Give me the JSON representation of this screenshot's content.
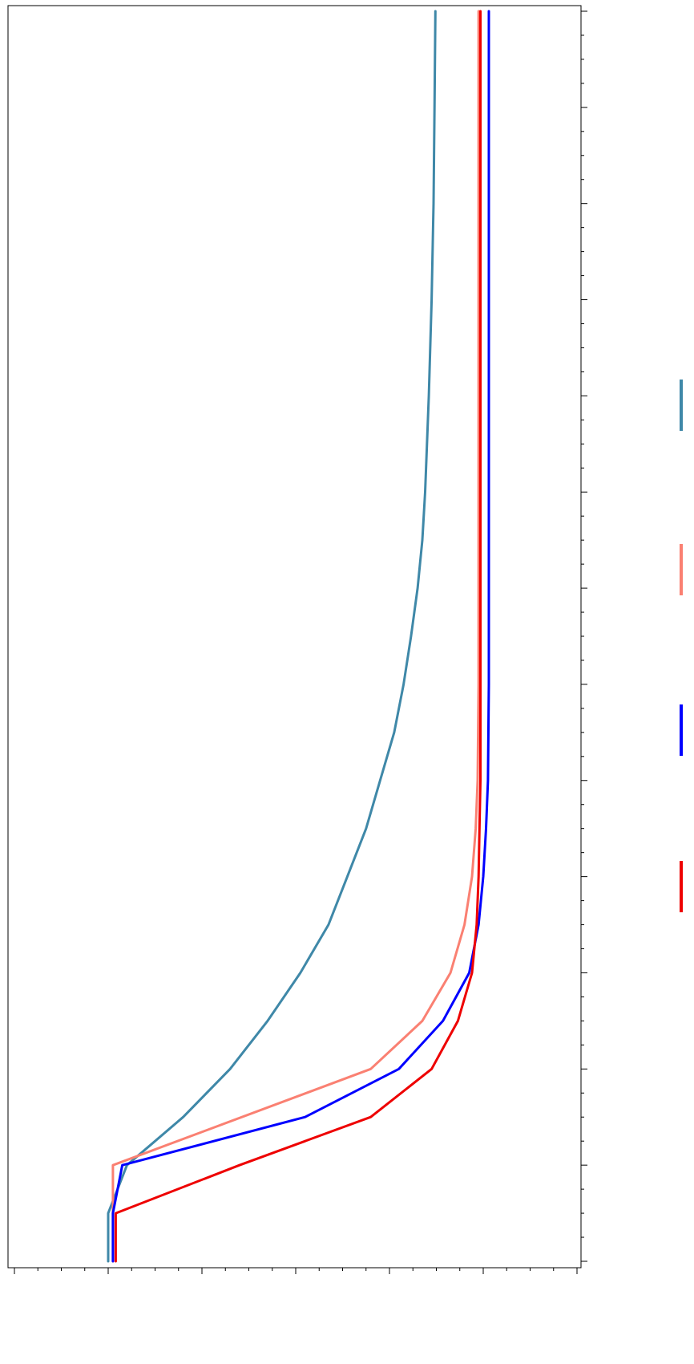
{
  "chart_data": {
    "type": "line",
    "orientation": "rotated-90",
    "xlabel": "",
    "ylabel": "",
    "x_ticks": [],
    "y_ticks": [],
    "xlim": [
      0,
      13
    ],
    "ylim": [
      -0.1,
      0.5
    ],
    "grid": false,
    "legend": {
      "title": "",
      "placement": "right",
      "entries": [
        "",
        "",
        "",
        ""
      ]
    },
    "series": [
      {
        "color": "#3F88A8",
        "x": [
          0,
          0.5,
          1,
          1.5,
          2,
          2.5,
          3,
          3.5,
          4,
          4.5,
          5,
          5.5,
          6,
          6.5,
          7,
          7.5,
          8,
          9,
          10,
          11,
          12,
          13
        ],
        "y": [
          0.0,
          0.0,
          0.02,
          0.08,
          0.13,
          0.17,
          0.205,
          0.235,
          0.255,
          0.275,
          0.29,
          0.305,
          0.315,
          0.323,
          0.33,
          0.335,
          0.338,
          0.342,
          0.345,
          0.347,
          0.348,
          0.349
        ]
      },
      {
        "color": "#FA8072",
        "x": [
          0,
          0.5,
          1,
          2,
          2.5,
          3,
          3.5,
          4,
          4.5,
          5,
          6,
          7,
          8,
          9,
          10,
          11,
          12,
          13
        ],
        "y": [
          0.005,
          0.005,
          0.005,
          0.28,
          0.335,
          0.365,
          0.38,
          0.388,
          0.392,
          0.394,
          0.395,
          0.395,
          0.395,
          0.395,
          0.395,
          0.395,
          0.395,
          0.395
        ]
      },
      {
        "color": "#0000FF",
        "x": [
          0,
          0.5,
          1,
          1.5,
          2,
          2.5,
          3,
          3.5,
          4,
          4.5,
          5,
          6,
          7,
          8,
          9,
          10,
          11,
          12,
          13
        ],
        "y": [
          0.005,
          0.005,
          0.015,
          0.21,
          0.31,
          0.357,
          0.385,
          0.395,
          0.4,
          0.403,
          0.405,
          0.406,
          0.406,
          0.406,
          0.406,
          0.406,
          0.406,
          0.406,
          0.406
        ]
      },
      {
        "color": "#EE0000",
        "x": [
          0,
          0.5,
          1,
          1.5,
          2,
          2.5,
          3,
          3.5,
          4,
          4.5,
          5,
          6,
          7,
          8,
          9,
          10,
          11,
          12,
          13
        ],
        "y": [
          0.008,
          0.008,
          0.14,
          0.28,
          0.345,
          0.373,
          0.388,
          0.393,
          0.395,
          0.396,
          0.397,
          0.397,
          0.397,
          0.397,
          0.397,
          0.397,
          0.397,
          0.397,
          0.397
        ]
      }
    ]
  }
}
